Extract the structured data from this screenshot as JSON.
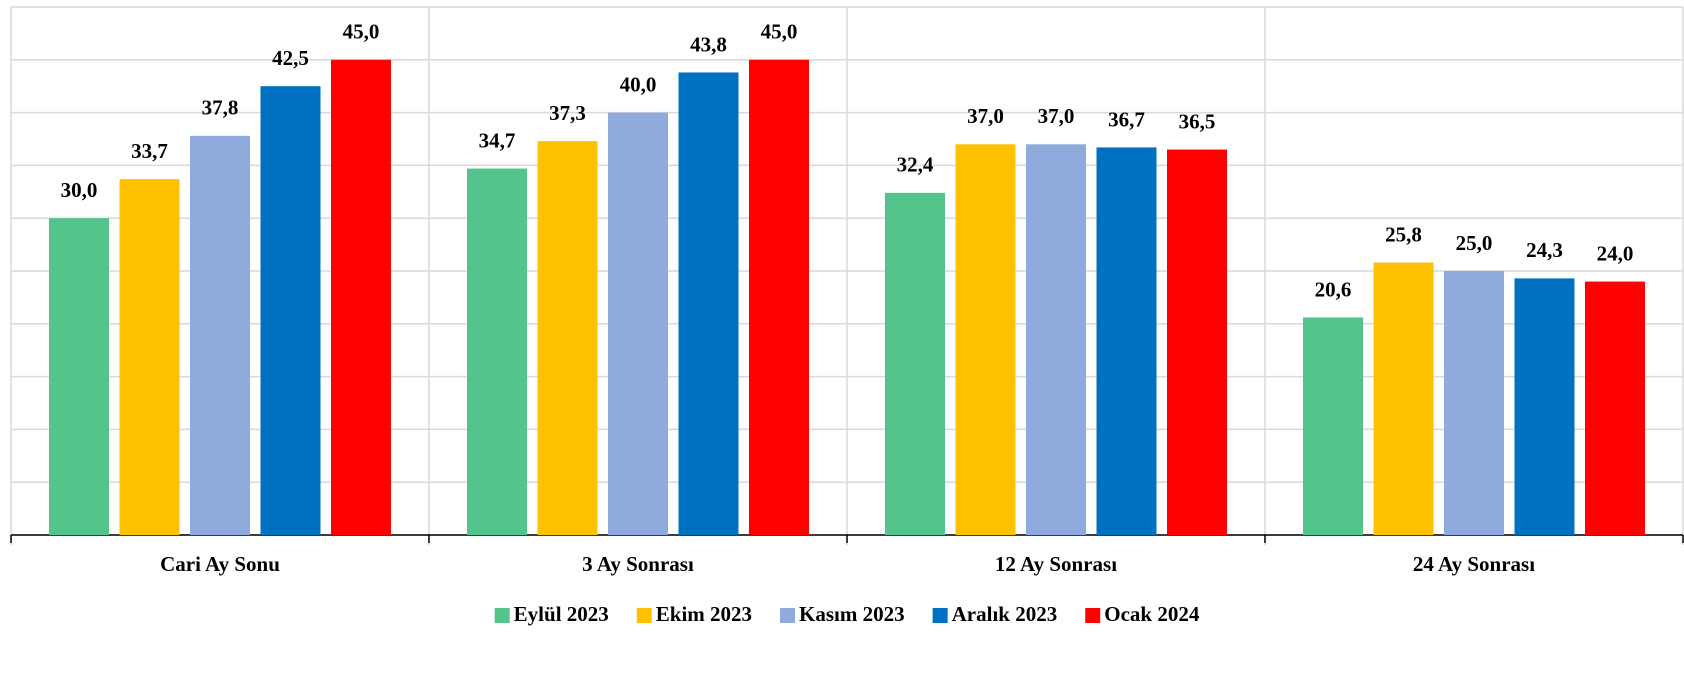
{
  "chart_data": {
    "type": "bar",
    "categories": [
      "Cari Ay Sonu",
      "3 Ay Sonrası",
      "12 Ay Sonrası",
      "24 Ay Sonrası"
    ],
    "series": [
      {
        "name": "Eylül 2023",
        "color": "#52c48c",
        "values": [
          30.0,
          34.7,
          32.4,
          20.6
        ],
        "value_labels": [
          "30,0",
          "34,7",
          "32,4",
          "20,6"
        ]
      },
      {
        "name": "Ekim 2023",
        "color": "#ffc000",
        "values": [
          33.7,
          37.3,
          37.0,
          25.8
        ],
        "value_labels": [
          "33,7",
          "37,3",
          "37,0",
          "25,8"
        ]
      },
      {
        "name": "Kasım 2023",
        "color": "#8faadc",
        "values": [
          37.8,
          40.0,
          37.0,
          25.0
        ],
        "value_labels": [
          "37,8",
          "40,0",
          "37,0",
          "25,0"
        ]
      },
      {
        "name": "Aralık 2023",
        "color": "#0070c0",
        "values": [
          42.5,
          43.8,
          36.7,
          24.3
        ],
        "value_labels": [
          "42,5",
          "43,8",
          "36,7",
          "24,3"
        ]
      },
      {
        "name": "Ocak 2024",
        "color": "#ff0000",
        "values": [
          45.0,
          45.0,
          36.5,
          24.0
        ],
        "value_labels": [
          "45,0",
          "45,0",
          "36,5",
          "24,0"
        ]
      }
    ],
    "ylim": [
      0,
      50
    ],
    "yticks": [
      0,
      5,
      10,
      15,
      20,
      25,
      30,
      35,
      40,
      45,
      50
    ],
    "grid": true,
    "legend": "bottom"
  }
}
